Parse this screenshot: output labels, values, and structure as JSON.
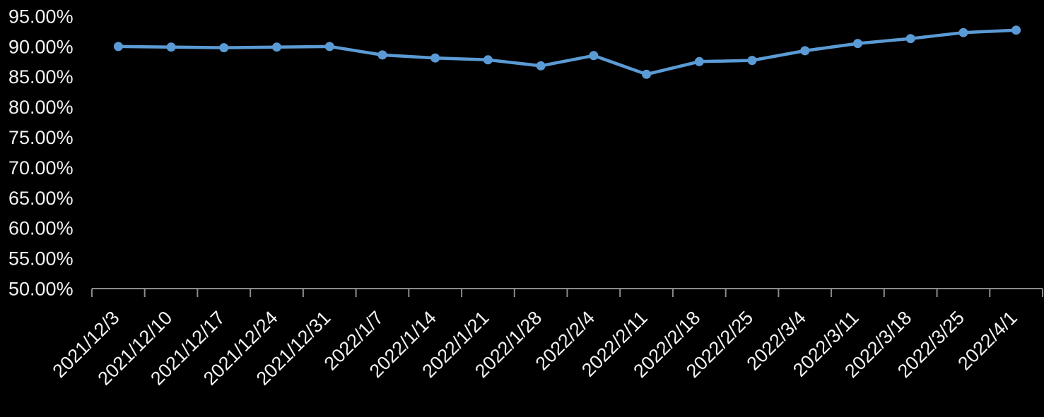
{
  "chart": {
    "background_color": "#000000",
    "text_color": "#F2F2F2",
    "axis_color": "#8A8A8A",
    "line_color": "#5B9BD5"
  },
  "chart_data": {
    "type": "line",
    "title": "",
    "xlabel": "",
    "ylabel": "",
    "categories": [
      "2021/12/3",
      "2021/12/10",
      "2021/12/17",
      "2021/12/24",
      "2021/12/31",
      "2022/1/7",
      "2022/1/14",
      "2022/1/21",
      "2022/1/28",
      "2022/2/4",
      "2022/2/11",
      "2022/2/18",
      "2022/2/25",
      "2022/3/4",
      "2022/3/11",
      "2022/3/18",
      "2022/3/25",
      "2022/4/1"
    ],
    "values": [
      90.0,
      89.9,
      89.8,
      89.9,
      90.0,
      88.6,
      88.1,
      87.8,
      86.8,
      88.5,
      85.4,
      87.5,
      87.7,
      89.3,
      90.5,
      91.3,
      92.3,
      92.7
    ],
    "value_suffix": "%",
    "ylim": [
      50,
      95
    ],
    "y_tick_values": [
      95,
      90,
      85,
      80,
      75,
      70,
      65,
      60,
      55,
      50
    ],
    "y_tick_labels": [
      "95.00%",
      "90.00%",
      "85.00%",
      "80.00%",
      "75.00%",
      "70.00%",
      "65.00%",
      "60.00%",
      "55.00%",
      "50.00%"
    ],
    "x_label_rotation_deg": 45,
    "grid": "off",
    "legend": "none",
    "marker": "circle"
  }
}
